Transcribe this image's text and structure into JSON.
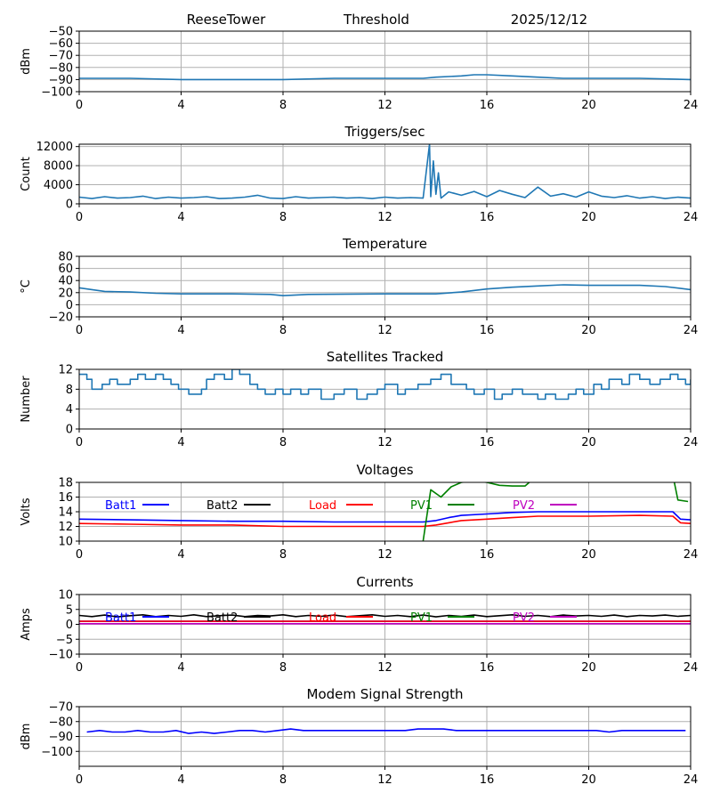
{
  "header": {
    "station": "ReeseTower",
    "subtitle": "Threshold",
    "date": "2025/12/12"
  },
  "colors": {
    "default_series": "#1f77b4",
    "grid": "#b0b0b0",
    "batt1": "#0000ff",
    "batt2": "#000000",
    "load": "#ff0000",
    "pv1": "#008000",
    "pv2": "#bf00bf"
  },
  "chart_data": [
    {
      "id": "threshold",
      "type": "line",
      "title": "",
      "xlabel": "",
      "ylabel": "dBm",
      "xlim": [
        0,
        24
      ],
      "ylim": [
        -100,
        -50
      ],
      "xticks": [
        0,
        4,
        8,
        12,
        16,
        20,
        24
      ],
      "yticks": [
        -100,
        -90,
        -80,
        -70,
        -60,
        -50
      ],
      "grid": true,
      "legend": "none",
      "series": [
        {
          "color": "#1f77b4",
          "x": [
            0,
            2,
            4,
            6,
            8,
            10,
            12,
            13.5,
            14,
            15,
            15.5,
            16,
            17,
            18,
            19,
            20,
            22,
            24
          ],
          "y": [
            -89,
            -89,
            -90,
            -90,
            -90,
            -89,
            -89,
            -89,
            -88,
            -87,
            -86,
            -86,
            -87,
            -88,
            -89,
            -89,
            -89,
            -90
          ]
        }
      ]
    },
    {
      "id": "triggers",
      "type": "line",
      "title": "Triggers/sec",
      "xlabel": "",
      "ylabel": "Count",
      "xlim": [
        0,
        24
      ],
      "ylim": [
        0,
        12500
      ],
      "xticks": [
        0,
        4,
        8,
        12,
        16,
        20,
        24
      ],
      "yticks": [
        0,
        4000,
        8000,
        12000
      ],
      "grid": true,
      "legend": "none",
      "series": [
        {
          "color": "#1f77b4",
          "x": [
            0,
            0.5,
            1,
            1.5,
            2,
            2.5,
            3,
            3.5,
            4,
            4.5,
            5,
            5.5,
            6,
            6.5,
            7,
            7.5,
            8,
            8.5,
            9,
            9.5,
            10,
            10.5,
            11,
            11.5,
            12,
            12.5,
            13,
            13.5,
            13.75,
            13.8,
            13.9,
            14.0,
            14.1,
            14.2,
            14.5,
            15,
            15.5,
            16,
            16.5,
            17,
            17.5,
            18,
            18.5,
            19,
            19.5,
            20,
            20.5,
            21,
            21.5,
            22,
            22.5,
            23,
            23.5,
            24
          ],
          "y": [
            1400,
            1100,
            1500,
            1200,
            1300,
            1600,
            1100,
            1400,
            1200,
            1300,
            1500,
            1100,
            1200,
            1400,
            1800,
            1200,
            1100,
            1500,
            1200,
            1300,
            1400,
            1200,
            1300,
            1100,
            1400,
            1200,
            1300,
            1200,
            12500,
            1500,
            9000,
            2000,
            6500,
            1200,
            2500,
            1800,
            2600,
            1500,
            2800,
            2000,
            1300,
            3500,
            1600,
            2100,
            1400,
            2500,
            1600,
            1300,
            1700,
            1200,
            1500,
            1100,
            1400,
            1200
          ]
        }
      ]
    },
    {
      "id": "temperature",
      "type": "line",
      "title": "Temperature",
      "xlabel": "",
      "ylabel": "°C",
      "xlim": [
        0,
        24
      ],
      "ylim": [
        -20,
        80
      ],
      "xticks": [
        0,
        4,
        8,
        12,
        16,
        20,
        24
      ],
      "yticks": [
        -20,
        0,
        20,
        40,
        60,
        80
      ],
      "grid": true,
      "legend": "none",
      "series": [
        {
          "color": "#1f77b4",
          "x": [
            0,
            1,
            2,
            3,
            4,
            6,
            7.5,
            8,
            9,
            12,
            14,
            15,
            16,
            17,
            18,
            19,
            20,
            22,
            23,
            24
          ],
          "y": [
            28,
            22,
            21,
            19,
            18,
            18,
            17,
            15,
            17,
            18,
            18,
            21,
            26,
            29,
            31,
            33,
            32,
            32,
            30,
            25
          ]
        }
      ]
    },
    {
      "id": "satellites",
      "type": "line",
      "title": "Satellites Tracked",
      "xlabel": "",
      "ylabel": "Number",
      "xlim": [
        0,
        24
      ],
      "ylim": [
        0,
        12
      ],
      "xticks": [
        0,
        4,
        8,
        12,
        16,
        20,
        24
      ],
      "yticks": [
        0,
        4,
        8,
        12
      ],
      "grid": true,
      "legend": "none",
      "series": [
        {
          "color": "#1f77b4",
          "step": true,
          "x": [
            0,
            0.3,
            0.5,
            0.9,
            1.2,
            1.5,
            2.0,
            2.3,
            2.6,
            3.0,
            3.3,
            3.6,
            3.9,
            4.3,
            4.8,
            5.0,
            5.3,
            5.7,
            6.0,
            6.3,
            6.7,
            7.0,
            7.3,
            7.7,
            8.0,
            8.3,
            8.7,
            9.0,
            9.5,
            10.0,
            10.4,
            10.9,
            11.3,
            11.7,
            12.0,
            12.5,
            12.8,
            13.3,
            13.8,
            14.2,
            14.6,
            15.2,
            15.5,
            15.9,
            16.3,
            16.6,
            17.0,
            17.4,
            18.0,
            18.3,
            18.7,
            19.2,
            19.5,
            19.8,
            20.2,
            20.5,
            20.8,
            21.3,
            21.6,
            22.0,
            22.4,
            22.8,
            23.2,
            23.5,
            23.8,
            24
          ],
          "y": [
            11,
            10,
            8,
            9,
            10,
            9,
            10,
            11,
            10,
            11,
            10,
            9,
            8,
            7,
            8,
            10,
            11,
            10,
            12,
            11,
            9,
            8,
            7,
            8,
            7,
            8,
            7,
            8,
            6,
            7,
            8,
            6,
            7,
            8,
            9,
            7,
            8,
            9,
            10,
            11,
            9,
            8,
            7,
            8,
            6,
            7,
            8,
            7,
            6,
            7,
            6,
            7,
            8,
            7,
            9,
            8,
            10,
            9,
            11,
            10,
            9,
            10,
            11,
            10,
            9,
            10
          ]
        }
      ]
    },
    {
      "id": "voltages",
      "type": "line",
      "title": "Voltages",
      "xlabel": "",
      "ylabel": "Volts",
      "xlim": [
        0,
        24
      ],
      "ylim": [
        10,
        18
      ],
      "xticks": [
        0,
        4,
        8,
        12,
        16,
        20,
        24
      ],
      "yticks": [
        10,
        12,
        14,
        16,
        18
      ],
      "grid": true,
      "legend": "top",
      "series": [
        {
          "name": "Batt1",
          "color": "#0000ff",
          "x": [
            0,
            2,
            4,
            6,
            8,
            10,
            12,
            13.5,
            14,
            14.5,
            15,
            16,
            17,
            18,
            20,
            22,
            23.3,
            23.6,
            24
          ],
          "y": [
            13.0,
            12.9,
            12.8,
            12.7,
            12.7,
            12.6,
            12.6,
            12.6,
            12.8,
            13.2,
            13.5,
            13.7,
            13.9,
            14.0,
            14.0,
            14.0,
            14.0,
            13.0,
            12.9
          ]
        },
        {
          "name": "Batt2",
          "color": "#000000",
          "x": [],
          "y": []
        },
        {
          "name": "Load",
          "color": "#ff0000",
          "x": [
            0,
            2,
            4,
            6,
            8,
            10,
            12,
            13.5,
            14,
            14.5,
            15,
            16,
            17,
            18,
            20,
            22,
            23.3,
            23.6,
            24
          ],
          "y": [
            12.4,
            12.3,
            12.2,
            12.2,
            12.0,
            12.0,
            12.0,
            12.0,
            12.2,
            12.5,
            12.8,
            13.0,
            13.2,
            13.4,
            13.4,
            13.5,
            13.4,
            12.5,
            12.4
          ]
        },
        {
          "name": "PV1",
          "color": "#008000",
          "x": [
            13.5,
            13.8,
            14.2,
            14.6,
            15.0,
            15.5,
            16.0,
            16.5,
            17.0,
            17.5,
            18.0,
            23.3,
            23.5,
            23.9
          ],
          "y": [
            10.0,
            17.0,
            16.0,
            17.4,
            18.0,
            18.2,
            18.0,
            17.6,
            17.5,
            17.5,
            19.0,
            19.0,
            15.6,
            15.4
          ]
        },
        {
          "name": "PV2",
          "color": "#bf00bf",
          "x": [],
          "y": []
        }
      ]
    },
    {
      "id": "currents",
      "type": "line",
      "title": "Currents",
      "xlabel": "",
      "ylabel": "Amps",
      "xlim": [
        0,
        24
      ],
      "ylim": [
        -10,
        10
      ],
      "xticks": [
        0,
        4,
        8,
        12,
        16,
        20,
        24
      ],
      "yticks": [
        -10,
        -5,
        0,
        5,
        10
      ],
      "grid": true,
      "legend": "top",
      "series": [
        {
          "name": "Batt1",
          "color": "#0000ff",
          "x": [
            0,
            24
          ],
          "y": [
            1.0,
            1.0
          ]
        },
        {
          "name": "Batt2",
          "color": "#000000",
          "x": [
            0,
            0.5,
            1,
            1.5,
            2,
            2.5,
            3,
            3.5,
            4,
            4.5,
            5,
            5.5,
            6,
            6.5,
            7,
            7.5,
            8,
            8.5,
            9,
            9.5,
            10,
            10.5,
            11,
            11.5,
            12,
            12.5,
            13,
            13.5,
            14,
            14.5,
            15,
            15.5,
            16,
            16.5,
            17,
            17.5,
            18,
            18.5,
            19,
            19.5,
            20,
            20.5,
            21,
            21.5,
            22,
            22.5,
            23,
            23.5,
            24
          ],
          "y": [
            3.0,
            2.6,
            3.1,
            2.5,
            2.9,
            3.2,
            2.6,
            3.0,
            2.7,
            3.2,
            2.6,
            2.9,
            3.1,
            2.6,
            3.0,
            2.8,
            3.2,
            2.6,
            3.0,
            2.7,
            3.1,
            2.6,
            2.9,
            3.2,
            2.7,
            3.0,
            2.6,
            3.1,
            2.5,
            3.0,
            2.7,
            3.1,
            2.6,
            2.9,
            3.2,
            2.7,
            3.0,
            2.6,
            3.1,
            2.8,
            3.0,
            2.7,
            3.1,
            2.6,
            3.0,
            2.8,
            3.1,
            2.7,
            3.0
          ]
        },
        {
          "name": "Load",
          "color": "#ff0000",
          "x": [
            0,
            24
          ],
          "y": [
            1.0,
            1.0
          ]
        },
        {
          "name": "PV1",
          "color": "#008000",
          "x": [],
          "y": []
        },
        {
          "name": "PV2",
          "color": "#bf00bf",
          "x": [
            0,
            24
          ],
          "y": [
            0.2,
            0.2
          ]
        }
      ]
    },
    {
      "id": "modem",
      "type": "line",
      "title": "Modem Signal Strength",
      "xlabel": "",
      "ylabel": "dBm",
      "xlim": [
        0,
        24
      ],
      "ylim": [
        -110,
        -70
      ],
      "xticks": [
        0,
        4,
        8,
        12,
        16,
        20,
        24
      ],
      "yticks": [
        -100,
        -90,
        -80,
        -70
      ],
      "grid": true,
      "legend": "none",
      "series": [
        {
          "color": "#0000ff",
          "x": [
            0.3,
            0.8,
            1.3,
            1.8,
            2.3,
            2.8,
            3.3,
            3.8,
            4.3,
            4.8,
            5.3,
            5.8,
            6.3,
            6.8,
            7.3,
            7.8,
            8.3,
            8.8,
            9.3,
            9.8,
            10.3,
            10.8,
            11.3,
            11.8,
            12.3,
            12.8,
            13.3,
            13.8,
            14.3,
            14.8,
            15.3,
            15.8,
            16.3,
            16.8,
            17.3,
            17.8,
            18.3,
            18.8,
            19.3,
            19.8,
            20.3,
            20.8,
            21.3,
            21.8,
            22.3,
            22.8,
            23.3,
            23.8
          ],
          "y": [
            -87,
            -86,
            -87,
            -87,
            -86,
            -87,
            -87,
            -86,
            -88,
            -87,
            -88,
            -87,
            -86,
            -86,
            -87,
            -86,
            -85,
            -86,
            -86,
            -86,
            -86,
            -86,
            -86,
            -86,
            -86,
            -86,
            -85,
            -85,
            -85,
            -86,
            -86,
            -86,
            -86,
            -86,
            -86,
            -86,
            -86,
            -86,
            -86,
            -86,
            -86,
            -87,
            -86,
            -86,
            -86,
            -86,
            -86,
            -86
          ]
        }
      ]
    }
  ]
}
